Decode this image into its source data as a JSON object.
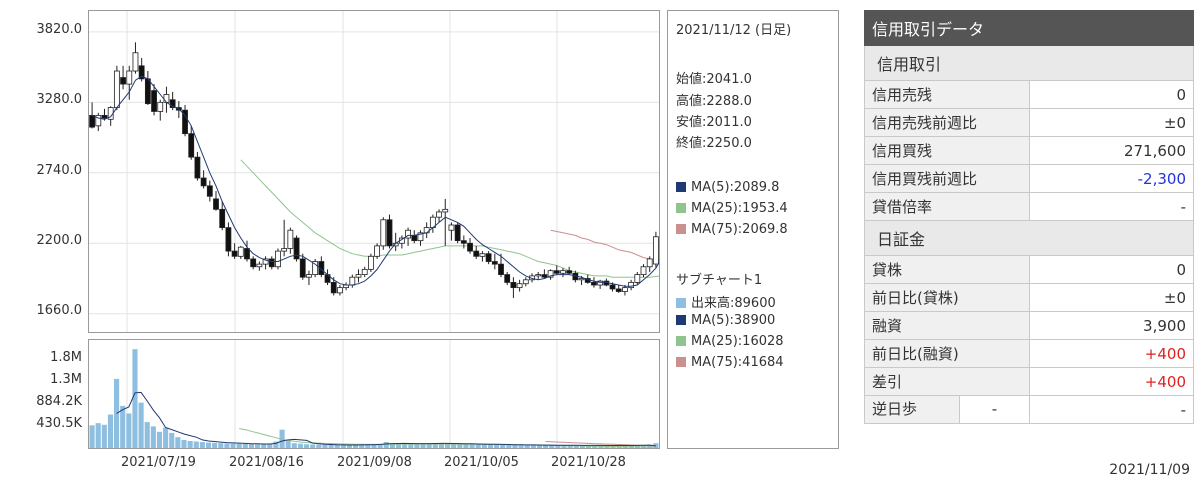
{
  "chart_data": [
    {
      "type": "candlestick",
      "title": "",
      "x_tick_labels": [
        "2021/07/19",
        "2021/08/16",
        "2021/09/08",
        "2021/10/05",
        "2021/10/28"
      ],
      "y_tick_labels": [
        "3820.0",
        "3280.0",
        "2740.0",
        "2200.0",
        "1660.0"
      ],
      "ylim": [
        1520,
        3980
      ],
      "grid": true,
      "candles": [
        [
          3180,
          3280,
          3080,
          3090
        ],
        [
          3100,
          3200,
          3060,
          3180
        ],
        [
          3180,
          3230,
          3140,
          3160
        ],
        [
          3150,
          3250,
          3100,
          3240
        ],
        [
          3240,
          3560,
          3220,
          3520
        ],
        [
          3470,
          3560,
          3380,
          3420
        ],
        [
          3420,
          3560,
          3300,
          3520
        ],
        [
          3520,
          3740,
          3500,
          3660
        ],
        [
          3560,
          3620,
          3440,
          3460
        ],
        [
          3460,
          3520,
          3260,
          3270
        ],
        [
          3370,
          3420,
          3180,
          3210
        ],
        [
          3210,
          3300,
          3140,
          3280
        ],
        [
          3280,
          3400,
          3200,
          3340
        ],
        [
          3300,
          3360,
          3220,
          3240
        ],
        [
          3240,
          3290,
          3160,
          3220
        ],
        [
          3220,
          3260,
          3020,
          3040
        ],
        [
          3040,
          3100,
          2840,
          2860
        ],
        [
          2860,
          2900,
          2680,
          2700
        ],
        [
          2700,
          2760,
          2620,
          2640
        ],
        [
          2640,
          2680,
          2520,
          2560
        ],
        [
          2540,
          2600,
          2450,
          2460
        ],
        [
          2460,
          2520,
          2300,
          2320
        ],
        [
          2320,
          2360,
          2100,
          2140
        ],
        [
          2140,
          2200,
          2080,
          2100
        ],
        [
          2100,
          2180,
          2080,
          2170
        ],
        [
          2160,
          2220,
          2060,
          2080
        ],
        [
          2080,
          2100,
          2000,
          2020
        ],
        [
          2020,
          2060,
          1990,
          2040
        ],
        [
          2040,
          2100,
          2000,
          2080
        ],
        [
          2080,
          2100,
          2000,
          2020
        ],
        [
          2020,
          2160,
          2000,
          2140
        ],
        [
          2140,
          2380,
          2100,
          2160
        ],
        [
          2160,
          2320,
          2120,
          2300
        ],
        [
          2240,
          2260,
          2060,
          2080
        ],
        [
          2080,
          2120,
          1920,
          1940
        ],
        [
          1940,
          1990,
          1880,
          1960
        ],
        [
          1960,
          2080,
          1940,
          2060
        ],
        [
          2060,
          2100,
          1940,
          1960
        ],
        [
          1960,
          2000,
          1880,
          1900
        ],
        [
          1900,
          1940,
          1800,
          1820
        ],
        [
          1820,
          1880,
          1800,
          1860
        ],
        [
          1860,
          1900,
          1840,
          1880
        ],
        [
          1880,
          1960,
          1860,
          1940
        ],
        [
          1940,
          2000,
          1900,
          1960
        ],
        [
          1960,
          2020,
          1940,
          2000
        ],
        [
          2000,
          2120,
          1980,
          2100
        ],
        [
          2100,
          2200,
          2080,
          2180
        ],
        [
          2180,
          2400,
          2150,
          2380
        ],
        [
          2380,
          2420,
          2160,
          2180
        ],
        [
          2180,
          2280,
          2140,
          2200
        ],
        [
          2200,
          2260,
          2160,
          2240
        ],
        [
          2240,
          2320,
          2180,
          2300
        ],
        [
          2260,
          2300,
          2200,
          2220
        ],
        [
          2220,
          2300,
          2180,
          2280
        ],
        [
          2280,
          2360,
          2240,
          2320
        ],
        [
          2320,
          2420,
          2280,
          2400
        ],
        [
          2400,
          2460,
          2360,
          2440
        ],
        [
          2440,
          2540,
          2180,
          2460
        ],
        [
          2300,
          2360,
          2220,
          2340
        ],
        [
          2340,
          2360,
          2200,
          2220
        ],
        [
          2220,
          2260,
          2160,
          2200
        ],
        [
          2200,
          2240,
          2120,
          2140
        ],
        [
          2140,
          2180,
          2080,
          2100
        ],
        [
          2100,
          2140,
          2060,
          2120
        ],
        [
          2120,
          2140,
          2040,
          2060
        ],
        [
          2060,
          2120,
          2000,
          2040
        ],
        [
          2040,
          2120,
          1940,
          1960
        ],
        [
          1960,
          1980,
          1880,
          1900
        ],
        [
          1900,
          1940,
          1780,
          1860
        ],
        [
          1860,
          1920,
          1830,
          1890
        ],
        [
          1890,
          1940,
          1870,
          1920
        ],
        [
          1920,
          1970,
          1900,
          1950
        ],
        [
          1950,
          1980,
          1920,
          1960
        ],
        [
          1960,
          2000,
          1930,
          1940
        ],
        [
          1940,
          2000,
          1920,
          1990
        ],
        [
          1990,
          2030,
          1960,
          1970
        ],
        [
          1970,
          2010,
          1940,
          1990
        ],
        [
          1990,
          2020,
          1960,
          1970
        ],
        [
          1970,
          1990,
          1900,
          1920
        ],
        [
          1920,
          1950,
          1880,
          1930
        ],
        [
          1930,
          1960,
          1890,
          1900
        ],
        [
          1900,
          1940,
          1860,
          1880
        ],
        [
          1880,
          1920,
          1850,
          1910
        ],
        [
          1910,
          1930,
          1870,
          1880
        ],
        [
          1880,
          1900,
          1830,
          1850
        ],
        [
          1850,
          1880,
          1820,
          1830
        ],
        [
          1830,
          1880,
          1800,
          1860
        ],
        [
          1860,
          1920,
          1840,
          1900
        ],
        [
          1900,
          1980,
          1880,
          1960
        ],
        [
          1960,
          2040,
          1940,
          2020
        ],
        [
          2020,
          2100,
          1980,
          2080
        ],
        [
          2041,
          2288,
          2011,
          2250
        ]
      ],
      "ma5": [
        3180,
        3160,
        3150,
        3170,
        3240,
        3300,
        3360,
        3450,
        3480,
        3460,
        3400,
        3340,
        3280,
        3250,
        3230,
        3180,
        3100,
        2980,
        2860,
        2740,
        2640,
        2520,
        2420,
        2320,
        2240,
        2170,
        2120,
        2090,
        2070,
        2060,
        2060,
        2080,
        2100,
        2110,
        2100,
        2070,
        2040,
        2000,
        1960,
        1920,
        1890,
        1880,
        1880,
        1890,
        1910,
        1950,
        2000,
        2070,
        2140,
        2200,
        2230,
        2260,
        2260,
        2270,
        2280,
        2320,
        2360,
        2400,
        2380,
        2360,
        2330,
        2280,
        2230,
        2190,
        2160,
        2130,
        2100,
        2060,
        2020,
        1980,
        1950,
        1930,
        1920,
        1930,
        1950,
        1960,
        1960,
        1960,
        1950,
        1940,
        1920,
        1910,
        1900,
        1900,
        1890,
        1880,
        1870,
        1870,
        1880,
        1920,
        1960,
        2010,
        2090
      ],
      "ma25": [
        null,
        null,
        null,
        null,
        null,
        null,
        null,
        null,
        null,
        null,
        null,
        null,
        null,
        null,
        null,
        null,
        null,
        null,
        null,
        null,
        null,
        null,
        null,
        null,
        2840,
        2790,
        2740,
        2690,
        2640,
        2590,
        2540,
        2490,
        2440,
        2400,
        2360,
        2320,
        2280,
        2250,
        2220,
        2190,
        2160,
        2140,
        2120,
        2110,
        2100,
        2100,
        2100,
        2110,
        2110,
        2110,
        2110,
        2120,
        2130,
        2140,
        2150,
        2160,
        2170,
        2180,
        2180,
        2180,
        2180,
        2180,
        2180,
        2180,
        2170,
        2160,
        2150,
        2140,
        2130,
        2120,
        2100,
        2080,
        2060,
        2050,
        2040,
        2030,
        2010,
        1990,
        1980,
        1970,
        1960,
        1950,
        1950,
        1950,
        1940,
        1940,
        1940,
        1940,
        1940,
        1940,
        1940,
        1945,
        1953
      ],
      "ma75": [
        null,
        null,
        null,
        null,
        null,
        null,
        null,
        null,
        null,
        null,
        null,
        null,
        null,
        null,
        null,
        null,
        null,
        null,
        null,
        null,
        null,
        null,
        null,
        null,
        null,
        null,
        null,
        null,
        null,
        null,
        null,
        null,
        null,
        null,
        null,
        null,
        null,
        null,
        null,
        null,
        null,
        null,
        null,
        null,
        null,
        null,
        null,
        null,
        null,
        null,
        null,
        null,
        null,
        null,
        null,
        null,
        null,
        null,
        null,
        null,
        null,
        null,
        null,
        null,
        null,
        null,
        null,
        null,
        null,
        null,
        null,
        null,
        null,
        null,
        2300,
        2290,
        2280,
        2270,
        2260,
        2240,
        2230,
        2210,
        2200,
        2190,
        2170,
        2150,
        2140,
        2130,
        2110,
        2090,
        2080,
        2075,
        2070
      ]
    },
    {
      "type": "bar",
      "title": "",
      "y_tick_labels": [
        "1.8M",
        "1.3M",
        "884.2K",
        "430.5K"
      ],
      "ylim": [
        0,
        2000000
      ],
      "values": [
        420000,
        460000,
        430000,
        620000,
        1280000,
        780000,
        640000,
        1830000,
        840000,
        480000,
        400000,
        300000,
        380000,
        280000,
        200000,
        150000,
        130000,
        120000,
        110000,
        100000,
        95000,
        90000,
        85000,
        80000,
        78000,
        75000,
        72000,
        70000,
        68000,
        80000,
        120000,
        340000,
        130000,
        90000,
        80000,
        70000,
        65000,
        62000,
        60000,
        58000,
        56000,
        55000,
        54000,
        56000,
        60000,
        68000,
        70000,
        72000,
        110000,
        90000,
        85000,
        80000,
        78000,
        76000,
        80000,
        84000,
        88000,
        90000,
        86000,
        82000,
        80000,
        76000,
        74000,
        70000,
        68000,
        66000,
        64000,
        62000,
        60000,
        58000,
        56000,
        55000,
        54000,
        53000,
        52000,
        51000,
        50000,
        50000,
        49000,
        49000,
        48000,
        48000,
        48000,
        47000,
        47000,
        46000,
        46000,
        46000,
        48000,
        50000,
        55000,
        60000,
        89600
      ],
      "ma5": [
        null,
        null,
        null,
        null,
        640000,
        710000,
        760000,
        1020000,
        1030000,
        870000,
        700000,
        560000,
        380000,
        340000,
        300000,
        260000,
        230000,
        200000,
        150000,
        130000,
        120000,
        110000,
        100000,
        95000,
        90000,
        85000,
        80000,
        77000,
        74000,
        74000,
        85000,
        130000,
        150000,
        160000,
        150000,
        140000,
        90000,
        80000,
        70000,
        65000,
        60000,
        58000,
        56000,
        56000,
        57000,
        60000,
        62000,
        66000,
        76000,
        82000,
        84000,
        85000,
        84000,
        82000,
        81000,
        82000,
        84000,
        86000,
        85000,
        84000,
        82000,
        80000,
        78000,
        75000,
        72000,
        70000,
        68000,
        66000,
        64000,
        62000,
        60000,
        58000,
        57000,
        55000,
        54000,
        53000,
        52000,
        51000,
        50000,
        50000,
        49000,
        48000,
        48000,
        48000,
        47000,
        47000,
        46000,
        46000,
        47000,
        48000,
        50000,
        53000,
        38900
      ],
      "ma25": [
        null,
        null,
        null,
        null,
        null,
        null,
        null,
        null,
        null,
        null,
        null,
        null,
        null,
        null,
        null,
        null,
        null,
        null,
        null,
        null,
        null,
        null,
        null,
        null,
        360000,
        340000,
        310000,
        280000,
        250000,
        220000,
        190000,
        160000,
        140000,
        125000,
        110000,
        100000,
        95000,
        90000,
        86000,
        82000,
        78000,
        74000,
        72000,
        70000,
        68000,
        67000,
        66000,
        66000,
        67000,
        68000,
        70000,
        72000,
        72000,
        72000,
        72000,
        72000,
        72000,
        72000,
        72000,
        72000,
        71000,
        70000,
        69000,
        68000,
        67000,
        66000,
        65000,
        64000,
        62000,
        60000,
        58000,
        56000,
        54000,
        52000,
        50000,
        48000,
        46000,
        44000,
        42000,
        40000,
        38000,
        36000,
        34000,
        32000,
        30000,
        28000,
        26000,
        24000,
        22000,
        20000,
        18000,
        17000,
        16028
      ],
      "ma75": [
        null,
        null,
        null,
        null,
        null,
        null,
        null,
        null,
        null,
        null,
        null,
        null,
        null,
        null,
        null,
        null,
        null,
        null,
        null,
        null,
        null,
        null,
        null,
        null,
        null,
        null,
        null,
        null,
        null,
        null,
        null,
        null,
        null,
        null,
        null,
        null,
        null,
        null,
        null,
        null,
        null,
        null,
        null,
        null,
        null,
        null,
        null,
        null,
        null,
        null,
        null,
        null,
        null,
        null,
        null,
        null,
        null,
        null,
        null,
        null,
        null,
        null,
        null,
        null,
        null,
        null,
        null,
        null,
        null,
        null,
        null,
        null,
        null,
        null,
        120000,
        115000,
        110000,
        105000,
        100000,
        95000,
        90000,
        85000,
        80000,
        76000,
        72000,
        68000,
        64000,
        60000,
        56000,
        52000,
        48000,
        44000,
        41684
      ]
    }
  ],
  "info_panel": {
    "date": "2021/11/12 (日足)",
    "open": "始値:2041.0",
    "high": "高値:2288.0",
    "low": "安値:2011.0",
    "close": "終値:2250.0",
    "ma5": "MA(5):2089.8",
    "ma25": "MA(25):1953.4",
    "ma75": "MA(75):2069.8",
    "sub_title": "サブチャート1",
    "volume": "出来高:89600",
    "sub_ma5": "MA(5):38900",
    "sub_ma25": "MA(25):16028",
    "sub_ma75": "MA(75):41684",
    "colors": {
      "volume": "#8fbfe0",
      "ma5": "#1f3a73",
      "ma25": "#8fc48f",
      "ma75": "#c9908f"
    }
  },
  "credit": {
    "title": "信用取引データ",
    "section1": "信用取引",
    "sell_label": "信用売残",
    "sell_value": "0",
    "sell_week_label": "信用売残前週比",
    "sell_week_value": "±0",
    "buy_label": "信用買残",
    "buy_value": "271,600",
    "buy_week_label": "信用買残前週比",
    "buy_week_value": "-2,300",
    "ratio_label": "貸借倍率",
    "ratio_value": "-",
    "section2": "日証金",
    "lend_label": "貸株",
    "lend_value": "0",
    "lend_prev_label": "前日比(貸株)",
    "lend_prev_value": "±0",
    "finance_label": "融資",
    "finance_value": "3,900",
    "finance_prev_label": "前日比(融資)",
    "finance_prev_value": "+400",
    "diff_label": "差引",
    "diff_value": "+400",
    "reverse_label": "逆日歩",
    "reverse_mid": "-",
    "reverse_value": "-",
    "date": "2021/11/09",
    "colors": {
      "negative": "#2233dd",
      "positive": "#e02020"
    }
  }
}
